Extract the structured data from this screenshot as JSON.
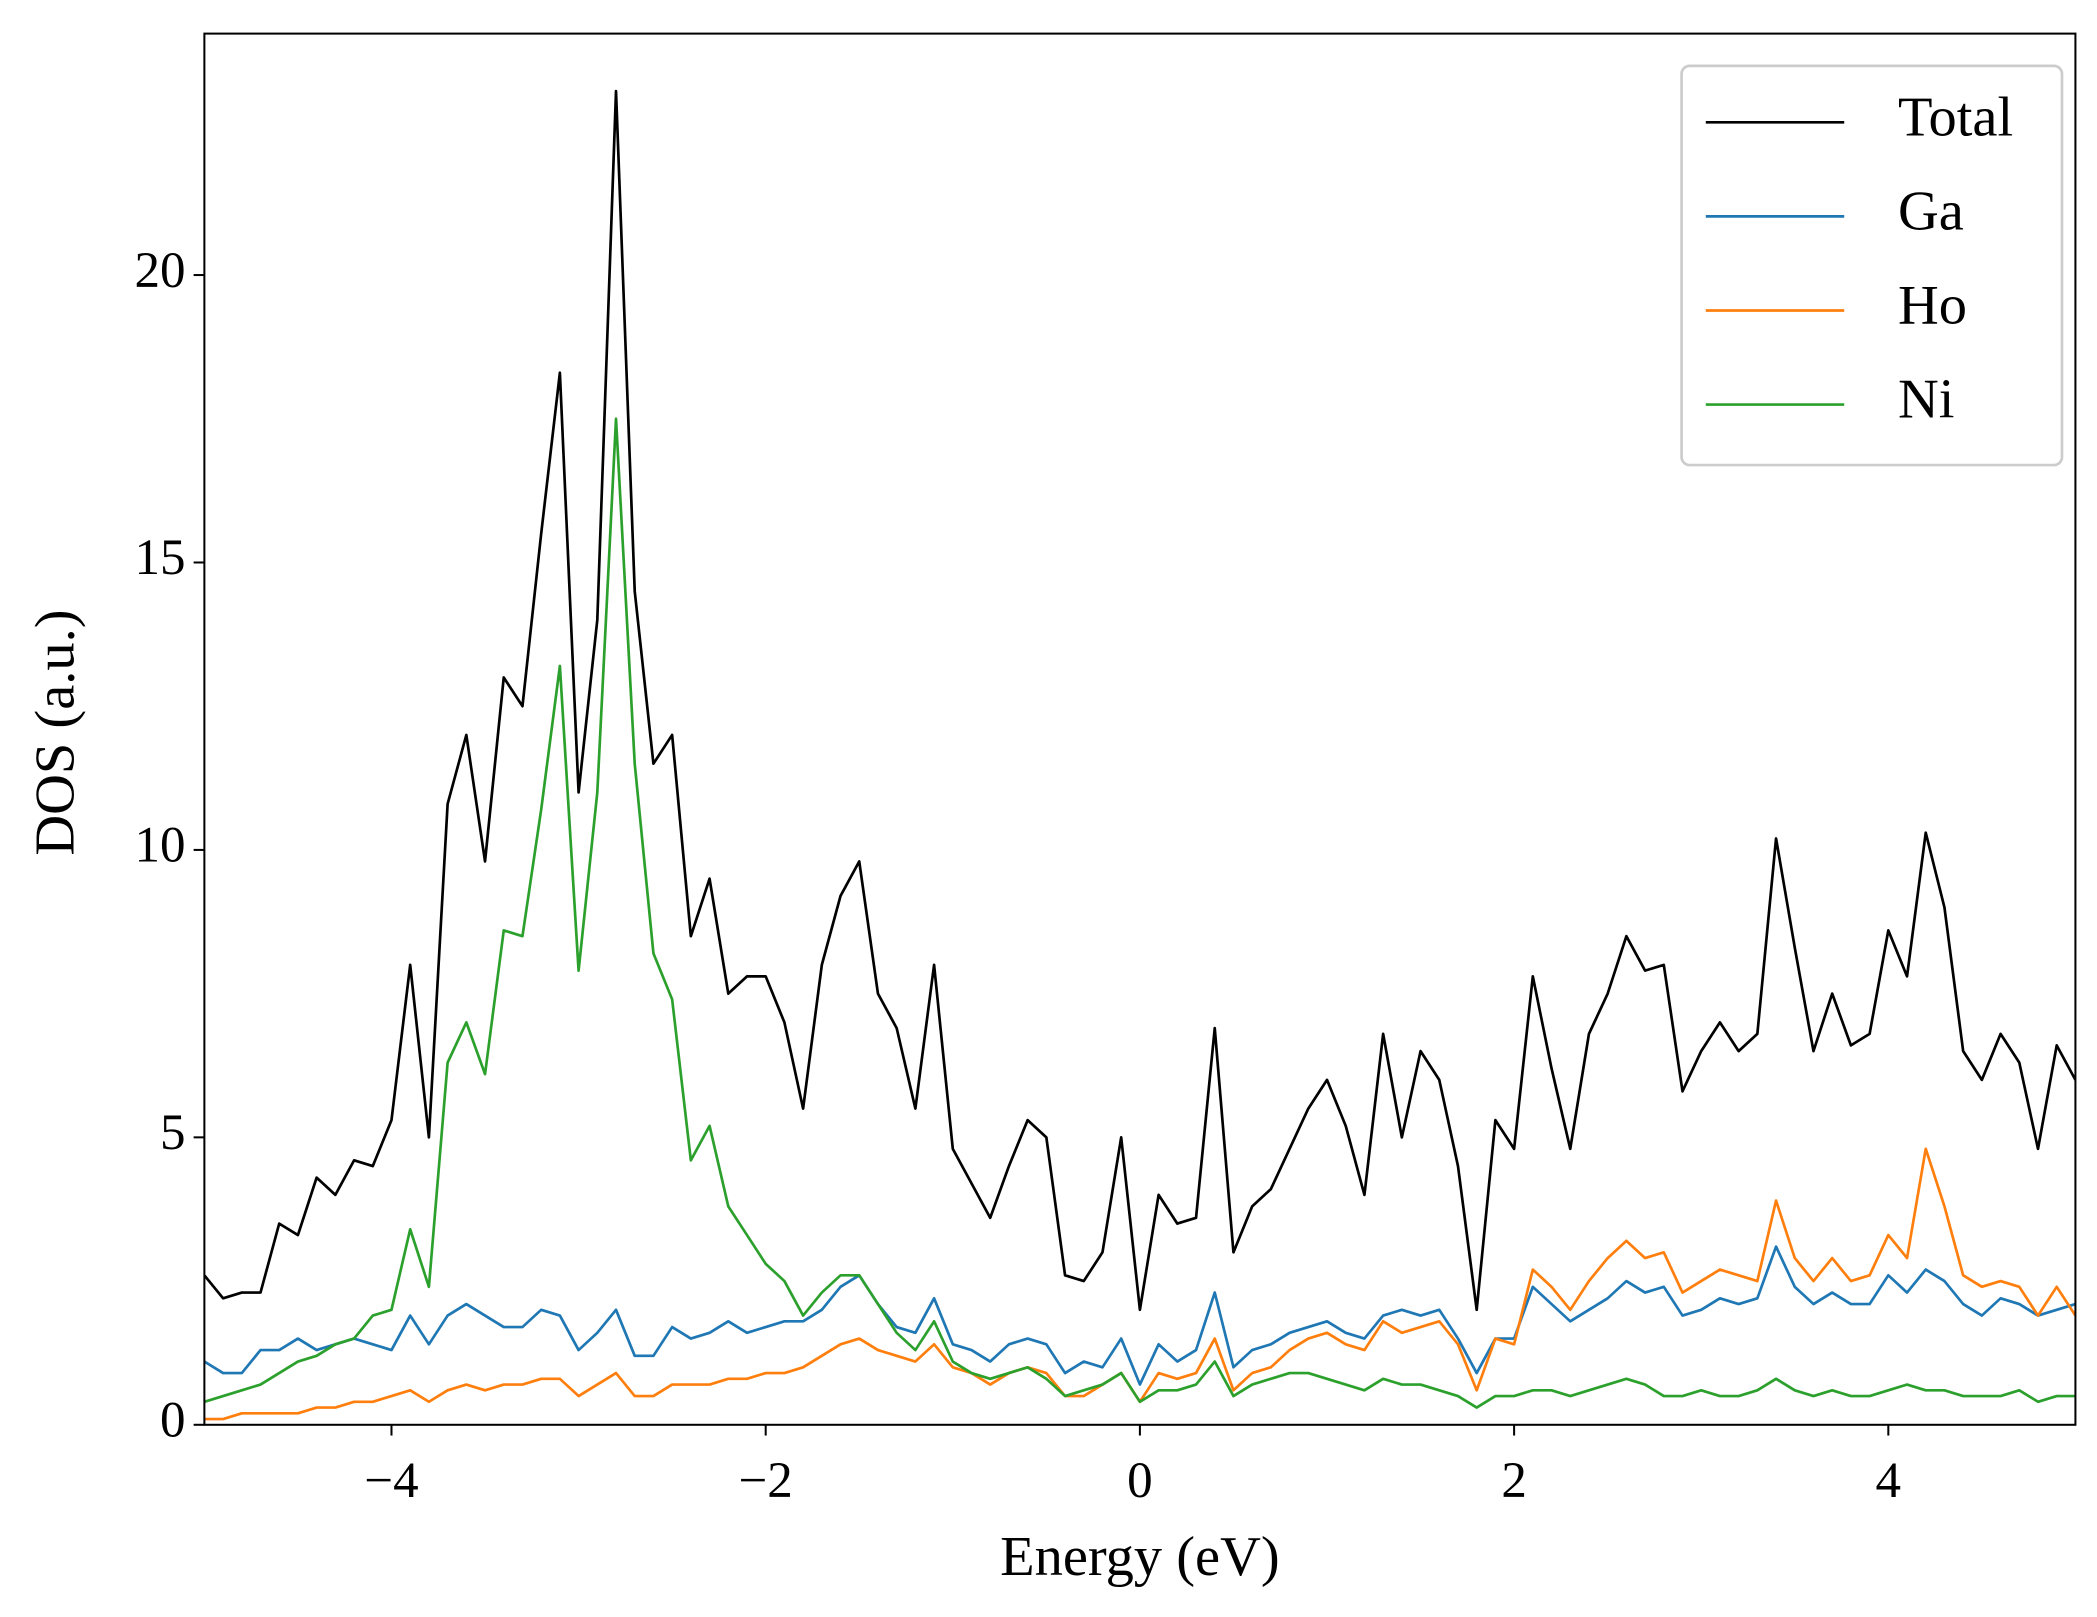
{
  "chart_data": {
    "type": "line",
    "xlabel": "Energy (eV)",
    "ylabel": "DOS (a.u.)",
    "xlim": [
      -5,
      5
    ],
    "ylim": [
      0,
      24.2
    ],
    "xticks": [
      {
        "value": -4,
        "label": "−4"
      },
      {
        "value": -2,
        "label": "−2"
      },
      0,
      2,
      4
    ],
    "yticks": [
      0,
      5,
      10,
      15,
      20
    ],
    "legend": "upper right",
    "x": [
      -5.0,
      -4.9,
      -4.8,
      -4.7,
      -4.6,
      -4.5,
      -4.4,
      -4.3,
      -4.2,
      -4.1,
      -4.0,
      -3.9,
      -3.8,
      -3.7,
      -3.6,
      -3.5,
      -3.4,
      -3.3,
      -3.2,
      -3.1,
      -3.0,
      -2.9,
      -2.8,
      -2.7,
      -2.6,
      -2.5,
      -2.4,
      -2.3,
      -2.2,
      -2.1,
      -2.0,
      -1.9,
      -1.8,
      -1.7,
      -1.6,
      -1.5,
      -1.4,
      -1.3,
      -1.2,
      -1.1,
      -1.0,
      -0.9,
      -0.8,
      -0.7,
      -0.6,
      -0.5,
      -0.4,
      -0.3,
      -0.2,
      -0.1,
      0.0,
      0.1,
      0.2,
      0.3,
      0.4,
      0.5,
      0.6,
      0.7,
      0.8,
      0.9,
      1.0,
      1.1,
      1.2,
      1.3,
      1.4,
      1.5,
      1.6,
      1.7,
      1.8,
      1.9,
      2.0,
      2.1,
      2.2,
      2.3,
      2.4,
      2.5,
      2.6,
      2.7,
      2.8,
      2.9,
      3.0,
      3.1,
      3.2,
      3.3,
      3.4,
      3.5,
      3.6,
      3.7,
      3.8,
      3.9,
      4.0,
      4.1,
      4.2,
      4.3,
      4.4,
      4.5,
      4.6,
      4.7,
      4.8,
      4.9,
      5.0
    ],
    "series": [
      {
        "name": "Total",
        "color": "#000000",
        "values": [
          2.6,
          2.2,
          2.3,
          2.3,
          3.5,
          3.3,
          4.3,
          4.0,
          4.6,
          4.5,
          5.3,
          8.0,
          5.0,
          10.8,
          12.0,
          9.8,
          13.0,
          12.5,
          15.5,
          18.3,
          11.0,
          14.0,
          23.2,
          14.5,
          11.5,
          12.0,
          8.5,
          9.5,
          7.5,
          7.8,
          7.8,
          7.0,
          5.5,
          8.0,
          9.2,
          9.8,
          7.5,
          6.9,
          5.5,
          8.0,
          4.8,
          4.2,
          3.6,
          4.5,
          5.3,
          5.0,
          2.6,
          2.5,
          3.0,
          5.0,
          2.0,
          4.0,
          3.5,
          3.6,
          6.9,
          3.0,
          3.8,
          4.1,
          4.8,
          5.5,
          6.0,
          5.2,
          4.0,
          6.8,
          5.0,
          6.5,
          6.0,
          4.5,
          2.0,
          5.3,
          4.8,
          7.8,
          6.2,
          4.8,
          6.8,
          7.5,
          8.5,
          7.9,
          8.0,
          5.8,
          6.5,
          7.0,
          6.5,
          6.8,
          10.2,
          8.3,
          6.5,
          7.5,
          6.6,
          6.8,
          8.6,
          7.8,
          10.3,
          9.0,
          6.5,
          6.0,
          6.8,
          6.3,
          4.8,
          6.6,
          6.0
        ]
      },
      {
        "name": "Ga",
        "color": "#1f77b4",
        "values": [
          1.1,
          0.9,
          0.9,
          1.3,
          1.3,
          1.5,
          1.3,
          1.4,
          1.5,
          1.4,
          1.3,
          1.9,
          1.4,
          1.9,
          2.1,
          1.9,
          1.7,
          1.7,
          2.0,
          1.9,
          1.3,
          1.6,
          2.0,
          1.2,
          1.2,
          1.7,
          1.5,
          1.6,
          1.8,
          1.6,
          1.7,
          1.8,
          1.8,
          2.0,
          2.4,
          2.6,
          2.1,
          1.7,
          1.6,
          2.2,
          1.4,
          1.3,
          1.1,
          1.4,
          1.5,
          1.4,
          0.9,
          1.1,
          1.0,
          1.5,
          0.7,
          1.4,
          1.1,
          1.3,
          2.3,
          1.0,
          1.3,
          1.4,
          1.6,
          1.7,
          1.8,
          1.6,
          1.5,
          1.9,
          2.0,
          1.9,
          2.0,
          1.5,
          0.9,
          1.5,
          1.5,
          2.4,
          2.1,
          1.8,
          2.0,
          2.2,
          2.5,
          2.3,
          2.4,
          1.9,
          2.0,
          2.2,
          2.1,
          2.2,
          3.1,
          2.4,
          2.1,
          2.3,
          2.1,
          2.1,
          2.6,
          2.3,
          2.7,
          2.5,
          2.1,
          1.9,
          2.2,
          2.1,
          1.9,
          2.0,
          2.1
        ]
      },
      {
        "name": "Ho",
        "color": "#ff7f0e",
        "values": [
          0.1,
          0.1,
          0.2,
          0.2,
          0.2,
          0.2,
          0.3,
          0.3,
          0.4,
          0.4,
          0.5,
          0.6,
          0.4,
          0.6,
          0.7,
          0.6,
          0.7,
          0.7,
          0.8,
          0.8,
          0.5,
          0.7,
          0.9,
          0.5,
          0.5,
          0.7,
          0.7,
          0.7,
          0.8,
          0.8,
          0.9,
          0.9,
          1.0,
          1.2,
          1.4,
          1.5,
          1.3,
          1.2,
          1.1,
          1.4,
          1.0,
          0.9,
          0.7,
          0.9,
          1.0,
          0.9,
          0.5,
          0.5,
          0.7,
          0.9,
          0.4,
          0.9,
          0.8,
          0.9,
          1.5,
          0.6,
          0.9,
          1.0,
          1.3,
          1.5,
          1.6,
          1.4,
          1.3,
          1.8,
          1.6,
          1.7,
          1.8,
          1.4,
          0.6,
          1.5,
          1.4,
          2.7,
          2.4,
          2.0,
          2.5,
          2.9,
          3.2,
          2.9,
          3.0,
          2.3,
          2.5,
          2.7,
          2.6,
          2.5,
          3.9,
          2.9,
          2.5,
          2.9,
          2.5,
          2.6,
          3.3,
          2.9,
          4.8,
          3.8,
          2.6,
          2.4,
          2.5,
          2.4,
          1.9,
          2.4,
          1.9
        ]
      },
      {
        "name": "Ni",
        "color": "#2ca02c",
        "values": [
          0.4,
          0.5,
          0.6,
          0.7,
          0.9,
          1.1,
          1.2,
          1.4,
          1.5,
          1.9,
          2.0,
          3.4,
          2.4,
          6.3,
          7.0,
          6.1,
          8.6,
          8.5,
          10.7,
          13.2,
          7.9,
          11.0,
          17.5,
          11.5,
          8.2,
          7.4,
          4.6,
          5.2,
          3.8,
          3.3,
          2.8,
          2.5,
          1.9,
          2.3,
          2.6,
          2.6,
          2.1,
          1.6,
          1.3,
          1.8,
          1.1,
          0.9,
          0.8,
          0.9,
          1.0,
          0.8,
          0.5,
          0.6,
          0.7,
          0.9,
          0.4,
          0.6,
          0.6,
          0.7,
          1.1,
          0.5,
          0.7,
          0.8,
          0.9,
          0.9,
          0.8,
          0.7,
          0.6,
          0.8,
          0.7,
          0.7,
          0.6,
          0.5,
          0.3,
          0.5,
          0.5,
          0.6,
          0.6,
          0.5,
          0.6,
          0.7,
          0.8,
          0.7,
          0.5,
          0.5,
          0.6,
          0.5,
          0.5,
          0.6,
          0.8,
          0.6,
          0.5,
          0.6,
          0.5,
          0.5,
          0.6,
          0.7,
          0.6,
          0.6,
          0.5,
          0.5,
          0.5,
          0.6,
          0.4,
          0.5,
          0.5
        ]
      }
    ]
  }
}
